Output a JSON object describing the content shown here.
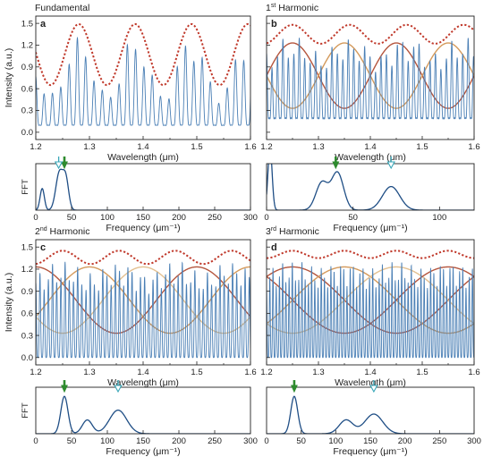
{
  "figure": {
    "colors": {
      "signal": "#4a7fb5",
      "envelope": "#c0392b",
      "sinusoid_a": "#b5563e",
      "sinusoid_b": "#d49a5c",
      "sinusoid_c": "#e3c090",
      "marker_green": "#2e8b2e",
      "marker_cyan": "#3aa7b8",
      "axis": "#222222"
    }
  },
  "chart_data": [
    {
      "type": "line",
      "panel": "a",
      "title": "Fundamental",
      "label": "a",
      "xlabel": "Wavelength (μm)",
      "ylabel": "Intensity (a.u.)",
      "xlim": [
        1.2,
        1.6
      ],
      "ylim": [
        -0.1,
        1.6
      ],
      "xticks": [
        "1.2",
        "1.3",
        "1.4",
        "1.5",
        "1.6"
      ],
      "yticks": [
        "0.0",
        "0.3",
        "0.6",
        "0.9",
        "1.2",
        "1.5"
      ],
      "envelope": {
        "mean": 1.07,
        "amplitude": 0.42,
        "period": 0.105,
        "phase": 1.28
      },
      "sinusoids": [],
      "signal": {
        "fringe_period": 0.0155,
        "base": 0.1
      }
    },
    {
      "type": "line",
      "panel": "b",
      "title": "1st Harmonic",
      "label": "b",
      "xlabel": "Wavelength (μm)",
      "ylabel": "",
      "xlim": [
        1.2,
        1.6
      ],
      "ylim": [
        -0.1,
        1.6
      ],
      "xticks": [
        "1.2",
        "1.3",
        "1.4",
        "1.5",
        "1.6"
      ],
      "yticks": [],
      "envelope": {
        "mean": 1.35,
        "amplitude": 0.13,
        "period": 0.11,
        "phase": 1.25
      },
      "sinusoids": [
        {
          "mean": 0.78,
          "amplitude": 0.45,
          "period": 0.2,
          "phase": 1.25
        },
        {
          "mean": 0.78,
          "amplitude": 0.45,
          "period": 0.2,
          "phase": 1.35
        }
      ],
      "signal": {
        "fringe_period": 0.0105,
        "base": 0.2
      }
    },
    {
      "type": "line",
      "panel": "c",
      "title": "2nd Harmonic",
      "label": "c",
      "xlabel": "Wavelength (μm)",
      "ylabel": "Intensity (a.u.)",
      "xlim": [
        1.2,
        1.6
      ],
      "ylim": [
        -0.1,
        1.6
      ],
      "xticks": [
        "1.2",
        "1.3",
        "1.4",
        "1.5",
        "1.6"
      ],
      "yticks": [
        "0.0",
        "0.3",
        "0.6",
        "0.9",
        "1.2",
        "1.5"
      ],
      "envelope": {
        "mean": 1.36,
        "amplitude": 0.09,
        "period": 0.105,
        "phase": 1.25
      },
      "sinusoids": [
        {
          "mean": 0.78,
          "amplitude": 0.45,
          "period": 0.3,
          "phase": 1.2
        },
        {
          "mean": 0.78,
          "amplitude": 0.45,
          "period": 0.3,
          "phase": 1.3
        },
        {
          "mean": 0.78,
          "amplitude": 0.45,
          "period": 0.3,
          "phase": 1.4
        }
      ],
      "signal": {
        "fringe_period": 0.0078,
        "base": 0.0
      }
    },
    {
      "type": "line",
      "panel": "d",
      "title": "3rd Harmonic",
      "label": "d",
      "xlabel": "Wavelength (μm)",
      "ylabel": "",
      "xlim": [
        1.2,
        1.6
      ],
      "ylim": [
        -0.1,
        1.6
      ],
      "xticks": [
        "1.2",
        "1.3",
        "1.4",
        "1.5",
        "1.6"
      ],
      "yticks": [],
      "envelope": {
        "mean": 1.4,
        "amplitude": 0.05,
        "period": 0.1,
        "phase": 1.25
      },
      "sinusoids": [
        {
          "mean": 0.78,
          "amplitude": 0.45,
          "period": 0.4,
          "phase": 1.25
        },
        {
          "mean": 0.78,
          "amplitude": 0.45,
          "period": 0.4,
          "phase": 1.35
        },
        {
          "mean": 0.78,
          "amplitude": 0.45,
          "period": 0.4,
          "phase": 1.45
        },
        {
          "mean": 0.78,
          "amplitude": 0.45,
          "period": 0.4,
          "phase": 1.55
        }
      ],
      "signal": {
        "fringe_period": 0.0062,
        "base": 0.0
      }
    },
    {
      "type": "line",
      "panel": "a-fft",
      "ylabel": "FFT",
      "xlabel": "Frequency (μm⁻¹)",
      "xlim": [
        0,
        300
      ],
      "xticks": [
        "0",
        "50",
        "100",
        "150",
        "200",
        "250",
        "300"
      ],
      "peaks": [
        {
          "center": 9,
          "height": 0.55,
          "width": 3
        },
        {
          "center": 33,
          "height": 0.95,
          "width": 5
        },
        {
          "center": 42,
          "height": 0.75,
          "width": 4
        }
      ],
      "markers": [
        {
          "kind": "green",
          "x": 40
        },
        {
          "kind": "cyan",
          "x": 32
        }
      ]
    },
    {
      "type": "line",
      "panel": "b-fft",
      "ylabel": "",
      "xlabel": "Frequency (μm⁻¹)",
      "xlim": [
        0,
        120
      ],
      "xticks": [
        "0",
        "50",
        "100"
      ],
      "peaks": [
        {
          "center": 2,
          "height": 1.6,
          "width": 1.2
        },
        {
          "center": 32,
          "height": 0.7,
          "width": 3.5
        },
        {
          "center": 41,
          "height": 0.95,
          "width": 3.5
        },
        {
          "center": 72,
          "height": 0.6,
          "width": 5
        }
      ],
      "markers": [
        {
          "kind": "green",
          "x": 40
        },
        {
          "kind": "cyan",
          "x": 72
        }
      ]
    },
    {
      "type": "line",
      "panel": "c-fft",
      "ylabel": "FFT",
      "xlabel": "Frequency (μm⁻¹)",
      "xlim": [
        0,
        300
      ],
      "xticks": [
        "0",
        "50",
        "100",
        "150",
        "200",
        "250",
        "300"
      ],
      "peaks": [
        {
          "center": 40,
          "height": 0.95,
          "width": 5
        },
        {
          "center": 72,
          "height": 0.35,
          "width": 7
        },
        {
          "center": 115,
          "height": 0.6,
          "width": 12
        }
      ],
      "markers": [
        {
          "kind": "green",
          "x": 40
        },
        {
          "kind": "cyan",
          "x": 115
        }
      ]
    },
    {
      "type": "line",
      "panel": "d-fft",
      "ylabel": "",
      "xlabel": "Frequency (μm⁻¹)",
      "xlim": [
        0,
        300
      ],
      "xticks": [
        "0",
        "50",
        "100",
        "150",
        "200",
        "250",
        "300"
      ],
      "peaks": [
        {
          "center": 40,
          "height": 0.95,
          "width": 5
        },
        {
          "center": 115,
          "height": 0.35,
          "width": 10
        },
        {
          "center": 155,
          "height": 0.5,
          "width": 13
        }
      ],
      "markers": [
        {
          "kind": "green",
          "x": 40
        },
        {
          "kind": "cyan",
          "x": 155
        }
      ]
    }
  ]
}
